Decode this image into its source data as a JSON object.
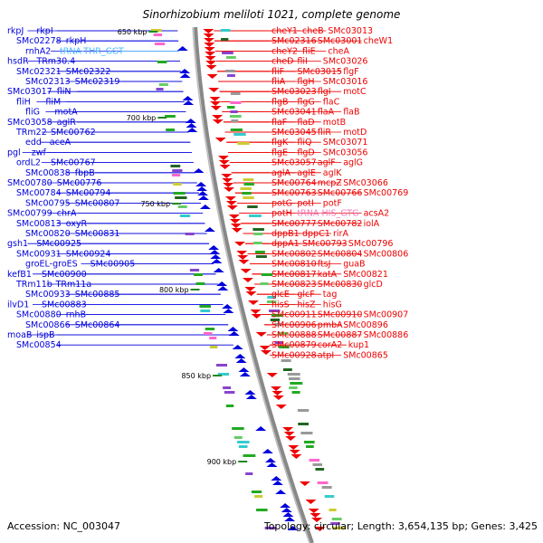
{
  "title": "Sinorhizobium meliloti 1021, complete genome",
  "footer": {
    "accession": "Accession: NC_003047",
    "summary": "Topology: circular; Length: 3,654,135 bp; Genes: 3,425"
  },
  "colors": {
    "left_strand": "#0000dd",
    "right_strand": "#ee0000",
    "trna_left": "#44bbff",
    "trna_right": "#ee77bb",
    "backbone": "#888888",
    "scale_tick": "#228822"
  },
  "ruler": [
    "650 kbp",
    "700 kbp",
    "750 kbp",
    "800 kbp",
    "850 kbp",
    "900 kbp"
  ],
  "left_labels": [
    "rkpJ",
    "rkpI",
    "SMc02278",
    "rkpH",
    "rnhA2",
    "tRNA-THR_GGT",
    "hsdR",
    "TRm30.4",
    "SMc02321",
    "SMc02322",
    "SMc02313",
    "SMc02319",
    "SMc03017",
    "fliN",
    "fliH",
    "fliM",
    "fliG",
    "motA",
    "SMc03058",
    "aglR",
    "TRm22",
    "SMc00762",
    "edd",
    "aceA",
    "pgl",
    "zwf",
    "ordL2",
    "SMc00767",
    "SMc00838",
    "fbpB",
    "SMc00780",
    "SMc00776",
    "SMc00784",
    "SMc00794",
    "SMc00795",
    "SMc00807",
    "SMc00799",
    "chrA",
    "SMc00813",
    "oxyR",
    "SMc00820",
    "SMc00831",
    "gsh1",
    "SMc00925",
    "SMc00931",
    "SMc00924",
    "groEL-groES",
    "SMc00905",
    "kefB1",
    "SMc00900",
    "TRm11b",
    "TRm11a",
    "SMc00933",
    "SMc00885",
    "ilvD1",
    "SMc00883",
    "SMc00880",
    "rnhB",
    "SMc00866",
    "SMc00864",
    "moaB",
    "ispB",
    "SMc00854"
  ],
  "right_labels": [
    "cheY1",
    "cheB",
    "SMc03013",
    "SMc02316",
    "SMc03001",
    "cheW1",
    "cheY2",
    "fliE",
    "cheA",
    "cheD",
    "fliI",
    "SMc03026",
    "fliF",
    "SMc03015",
    "flgF",
    "fliA",
    "flgH",
    "SMc03016",
    "SMc03023",
    "flgI",
    "motC",
    "flgB",
    "flgG",
    "flaC",
    "SMc03041",
    "flaA",
    "flaB",
    "flaF",
    "flaD",
    "motB",
    "SMc03045",
    "fliR",
    "motD",
    "flgK",
    "fliQ",
    "SMc03071",
    "flgE",
    "flgD",
    "SMc03056",
    "SMc03057",
    "aglF",
    "aglG",
    "aglA",
    "aglE",
    "aglK",
    "SMc00764",
    "mcpZ",
    "SMc03066",
    "SMc00763",
    "SMc00766",
    "SMc00769",
    "potG",
    "potI",
    "potF",
    "potH",
    "tRNA-HIS_GTG",
    "acsA2",
    "SMc00777",
    "SMc00782",
    "iolA",
    "dppB1",
    "dppC1",
    "rirA",
    "dppA1",
    "SMc00793",
    "SMc00796",
    "SMc00802",
    "SMc00804",
    "SMc00806",
    "SMc00810",
    "ftsJ",
    "guaB",
    "SMc00817",
    "katA",
    "SMc00821",
    "SMc00823",
    "SMc00830",
    "glcD",
    "glcE",
    "glcF",
    "tag",
    "hisS",
    "hisZ",
    "hisG",
    "SMc00911",
    "SMc00910",
    "SMc00907",
    "SMc00906",
    "pmbA",
    "SMc00896",
    "SMc00888",
    "SMc00887",
    "SMc00886",
    "SMc00879",
    "corA2",
    "kup1",
    "SMc00928",
    "atpI",
    "SMc00865"
  ]
}
